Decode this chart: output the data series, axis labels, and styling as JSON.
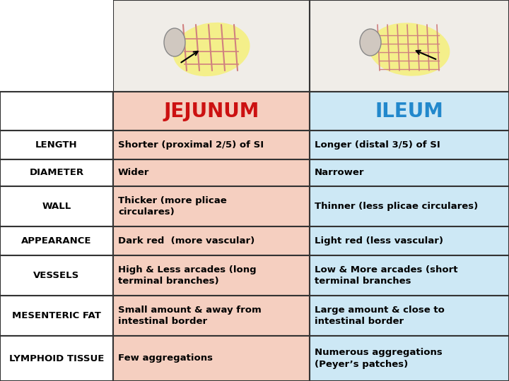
{
  "title_jejunum": "JEJUNUM",
  "title_ileum": "ILEUM",
  "jejunum_color": "#f5cfc0",
  "ileum_color": "#cde8f5",
  "header_jejunum_text_color": "#cc1111",
  "header_ileum_text_color": "#2288cc",
  "row_line_color": "#333333",
  "rows": [
    {
      "label": "LENGTH",
      "jejunum": "Shorter (proximal 2/5) of SI",
      "ileum": "Longer (distal 3/5) of SI"
    },
    {
      "label": "DIAMETER",
      "jejunum": "Wider",
      "ileum": "Narrower"
    },
    {
      "label": "WALL",
      "jejunum": "Thicker (more plicae\ncirculares)",
      "ileum": "Thinner (less plicae circulares)"
    },
    {
      "label": "APPEARANCE",
      "jejunum": "Dark red  (more vascular)",
      "ileum": "Light red (less vascular)"
    },
    {
      "label": "VESSELS",
      "jejunum": "High & Less arcades (long\nterminal branches)",
      "ileum": "Low & More arcades (short\nterminal branches"
    },
    {
      "label": "MESENTERIC FAT",
      "jejunum": "Small amount & away from\nintestinal border",
      "ileum": "Large amount & close to\nintestinal border"
    },
    {
      "label": "LYMPHOID TISSUE",
      "jejunum": "Few aggregations",
      "ileum": "Numerous aggregations\n(Peyer’s patches)"
    }
  ],
  "bg_color": "#ffffff",
  "header_fontsize": 20,
  "label_fontsize": 9.5,
  "cell_fontsize": 9.5,
  "font_family": "DejaVu Sans"
}
